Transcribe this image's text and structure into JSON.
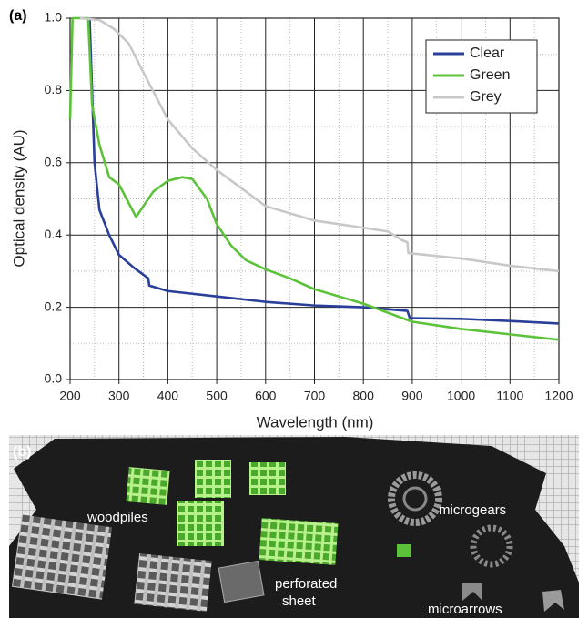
{
  "chart_data": {
    "type": "line",
    "panel_label": "(a)",
    "x_label": "Wavelength (nm)",
    "y_label": "Optical density (AU)",
    "xlim": [
      200,
      1200
    ],
    "ylim": [
      0,
      1
    ],
    "xticks": [
      200,
      300,
      400,
      500,
      600,
      700,
      800,
      900,
      1000,
      1100,
      1200
    ],
    "yticks": [
      {
        "value": 0,
        "label": "0.0"
      },
      0.2,
      0.4,
      0.6,
      0.8,
      {
        "value": 1,
        "label": "1.0"
      }
    ],
    "grid": true,
    "minor_grid": true,
    "legend": "upper right",
    "series": [
      {
        "name": "Clear",
        "color": "#2a3f9a",
        "x": [
          240,
          245,
          250,
          260,
          280,
          300,
          330,
          360,
          362,
          400,
          500,
          600,
          700,
          800,
          890,
          895,
          1000,
          1100,
          1200
        ],
        "values": [
          1.0,
          0.8,
          0.6,
          0.47,
          0.4,
          0.345,
          0.31,
          0.28,
          0.26,
          0.245,
          0.23,
          0.215,
          0.205,
          0.2,
          0.19,
          0.17,
          0.168,
          0.162,
          0.155
        ]
      },
      {
        "name": "Green",
        "color": "#5cc23a",
        "x": [
          200,
          205,
          237,
          245,
          260,
          280,
          300,
          335,
          350,
          370,
          400,
          430,
          450,
          480,
          500,
          530,
          560,
          600,
          650,
          700,
          800,
          900,
          1000,
          1100,
          1200
        ],
        "values": [
          0.72,
          1.0,
          1.0,
          0.76,
          0.65,
          0.56,
          0.54,
          0.45,
          0.48,
          0.52,
          0.55,
          0.56,
          0.555,
          0.5,
          0.43,
          0.37,
          0.33,
          0.305,
          0.28,
          0.25,
          0.21,
          0.16,
          0.14,
          0.125,
          0.11
        ]
      },
      {
        "name": "Grey",
        "color": "#c8c8c8",
        "x": [
          220,
          260,
          290,
          320,
          350,
          400,
          450,
          500,
          600,
          700,
          800,
          850,
          880,
          890,
          892,
          1000,
          1100,
          1200
        ],
        "values": [
          1.0,
          0.995,
          0.97,
          0.93,
          0.85,
          0.72,
          0.64,
          0.58,
          0.48,
          0.44,
          0.42,
          0.41,
          0.385,
          0.38,
          0.35,
          0.335,
          0.315,
          0.3
        ]
      }
    ]
  },
  "panel_b": {
    "panel_label": "(b)",
    "labels": [
      "woodpiles",
      "microgears",
      "perforated",
      "sheet",
      "microarrows"
    ]
  }
}
